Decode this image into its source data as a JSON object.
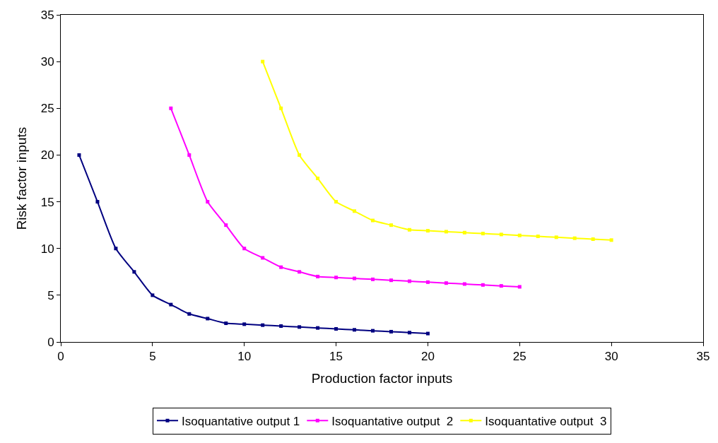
{
  "chart_data": {
    "type": "line",
    "xlabel": "Production factor inputs",
    "ylabel": "Risk factor inputs",
    "xlim": [
      0,
      35
    ],
    "xticks": [
      0,
      5,
      10,
      15,
      20,
      25,
      30,
      35
    ],
    "ylim": [
      0,
      35
    ],
    "yticks": [
      0,
      5,
      10,
      15,
      20,
      25,
      30,
      35
    ],
    "legend": "bottom",
    "marker": "square",
    "line_style": "solid",
    "series": [
      {
        "name": "Isoquantative output 1",
        "color": "#000080",
        "x": [
          1,
          2,
          3,
          4,
          5,
          6,
          7,
          8,
          9,
          10,
          11,
          12,
          13,
          14,
          15,
          16,
          17,
          18,
          19,
          20
        ],
        "values": [
          20,
          15,
          10,
          7.5,
          5,
          4,
          3,
          2.5,
          2,
          1.9,
          1.8,
          1.7,
          1.6,
          1.5,
          1.4,
          1.3,
          1.2,
          1.1,
          1.0,
          0.9
        ]
      },
      {
        "name": "Isoquantative output  2",
        "color": "#ff00ff",
        "x": [
          6,
          7,
          8,
          9,
          10,
          11,
          12,
          13,
          14,
          15,
          16,
          17,
          18,
          19,
          20,
          21,
          22,
          23,
          24,
          25
        ],
        "values": [
          25,
          20,
          15,
          12.5,
          10,
          9,
          8,
          7.5,
          7,
          6.9,
          6.8,
          6.7,
          6.6,
          6.5,
          6.4,
          6.3,
          6.2,
          6.1,
          6.0,
          5.9
        ]
      },
      {
        "name": "Isoquantative output  3",
        "color": "#ffff00",
        "x": [
          11,
          12,
          13,
          14,
          15,
          16,
          17,
          18,
          19,
          20,
          21,
          22,
          23,
          24,
          25,
          26,
          27,
          28,
          29,
          30
        ],
        "values": [
          30,
          25,
          20,
          17.5,
          15,
          14,
          13,
          12.5,
          12,
          11.9,
          11.8,
          11.7,
          11.6,
          11.5,
          11.4,
          11.3,
          11.2,
          11.1,
          11.0,
          10.9
        ]
      }
    ]
  }
}
